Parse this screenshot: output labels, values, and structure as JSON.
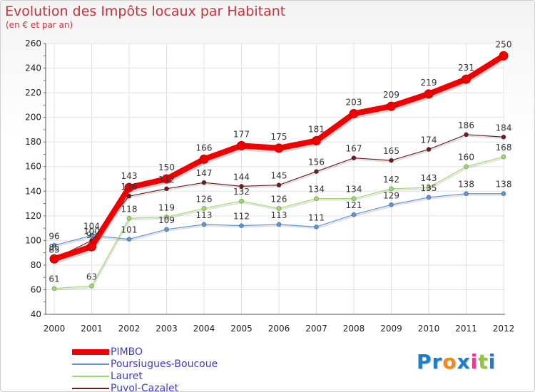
{
  "title": "Evolution des Impôts locaux par Habitant",
  "subtitle": "(en € et par an)",
  "chart_data": {
    "type": "line",
    "title": "Evolution des Impôts locaux par Habitant",
    "subtitle": "(en € et par an)",
    "xlabel": "",
    "ylabel": "",
    "ylim": [
      40,
      260
    ],
    "yticks": [
      40,
      60,
      80,
      100,
      120,
      140,
      160,
      180,
      200,
      220,
      240,
      260
    ],
    "categories": [
      "2000",
      "2001",
      "2002",
      "2003",
      "2004",
      "2005",
      "2006",
      "2007",
      "2008",
      "2009",
      "2010",
      "2011",
      "2012"
    ],
    "grid": true,
    "legend_position": "bottom-left",
    "series": [
      {
        "name": "Poursiugues-Boucoue",
        "color": "#5e95d3",
        "values": [
          96,
          104,
          101,
          109,
          113,
          112,
          113,
          111,
          121,
          129,
          135,
          138,
          138
        ]
      },
      {
        "name": "Lauret",
        "color": "#9ddc6c",
        "values": [
          61,
          63,
          118,
          119,
          126,
          132,
          126,
          134,
          134,
          142,
          143,
          160,
          168
        ]
      },
      {
        "name": "Puyol-Cazalet",
        "color": "#6b1e22",
        "values": [
          85,
          100,
          136,
          142,
          147,
          144,
          145,
          156,
          167,
          165,
          174,
          186,
          184
        ]
      },
      {
        "name": "PIMBO",
        "color": "#ee0000",
        "values": [
          85,
          95,
          143,
          150,
          166,
          177,
          175,
          181,
          203,
          209,
          219,
          231,
          250
        ]
      }
    ],
    "legend_order": [
      3,
      0,
      1,
      2
    ],
    "data_labels": [
      {
        "series": 0,
        "values": [
          "96",
          "104",
          "101",
          "109",
          "113",
          "112",
          "113",
          "111",
          "121",
          "129",
          "135",
          "138",
          "138"
        ]
      },
      {
        "series": 1,
        "values": [
          "61",
          "63",
          "118",
          "119",
          "126",
          "132",
          "126",
          "134",
          "134",
          "142",
          "143",
          "160",
          "168"
        ]
      },
      {
        "series": 2,
        "values": [
          "85",
          "100",
          "136",
          "142",
          "147",
          "144",
          "145",
          "156",
          "167",
          "165",
          "174",
          "186",
          "184"
        ]
      },
      {
        "series": 3,
        "values": [
          "85",
          "95",
          "143",
          "150",
          "166",
          "177",
          "175",
          "181",
          "203",
          "209",
          "219",
          "231",
          "250"
        ]
      }
    ]
  },
  "logo": {
    "letters": [
      "P",
      "r",
      "o",
      "x",
      "i",
      "t",
      "i"
    ],
    "colors": [
      "#1e7cc8",
      "#1e7cc8",
      "#f08a1c",
      "#1e7cc8",
      "#e63c8c",
      "#8cc83c",
      "#1e7cc8"
    ]
  }
}
